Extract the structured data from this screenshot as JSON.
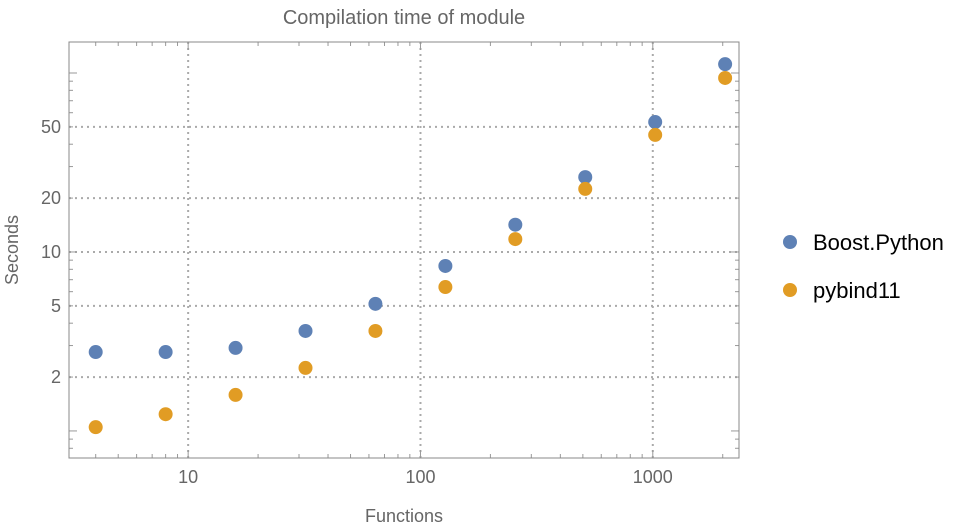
{
  "chart_data": {
    "type": "scatter",
    "title": "Compilation time of module",
    "xlabel": "Functions",
    "ylabel": "Seconds",
    "xscale": "log",
    "yscale": "log",
    "xlim": [
      3.07,
      2350
    ],
    "ylim": [
      0.706,
      149
    ],
    "xticks": [
      10,
      100,
      1000
    ],
    "xtick_labels": [
      "10",
      "100",
      "1000"
    ],
    "yticks": [
      2,
      5,
      10,
      20,
      50
    ],
    "ytick_labels": [
      "2",
      "5",
      "10",
      "20",
      "50"
    ],
    "grid": true,
    "legend_position": "right",
    "x": [
      4,
      8,
      16,
      32,
      64,
      128,
      256,
      512,
      1024,
      2048
    ],
    "series": [
      {
        "name": "Boost.Python",
        "color": "#5e81b5",
        "values": [
          2.76,
          2.76,
          2.91,
          3.62,
          5.13,
          8.35,
          14.2,
          26.2,
          53.2,
          112
        ]
      },
      {
        "name": "pybind11",
        "color": "#e19c24",
        "values": [
          1.05,
          1.24,
          1.59,
          2.25,
          3.62,
          6.37,
          11.8,
          22.5,
          45.1,
          93.8
        ]
      }
    ]
  }
}
